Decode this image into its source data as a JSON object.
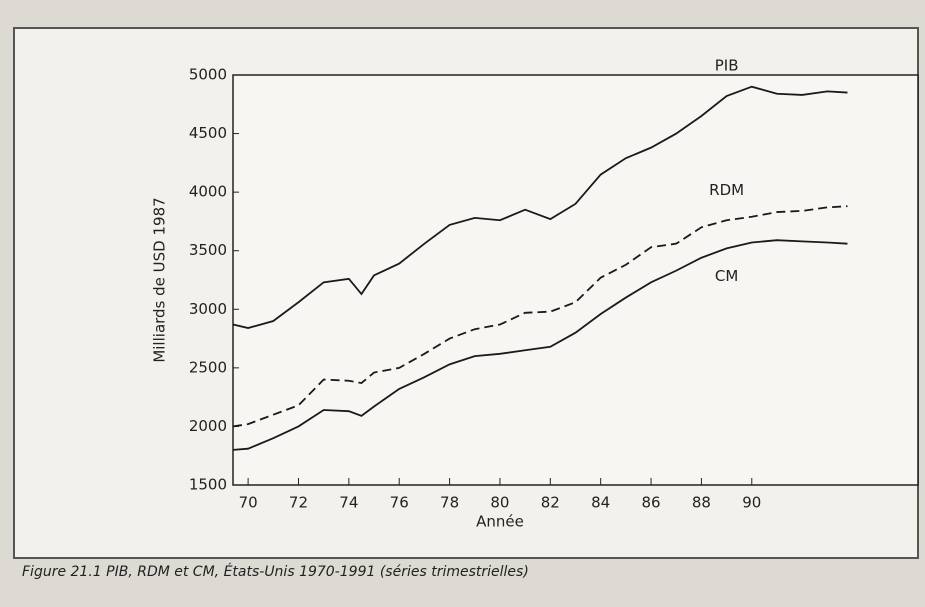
{
  "chart_data": {
    "type": "line",
    "ylabel": "Milliards de USD 1987",
    "xlabel": "Année",
    "caption": "Figure 21.1   PIB, RDM et CM, États-Unis 1970-1991 (séries trimestrielles)",
    "x": [
      69.4,
      70,
      71,
      72,
      73,
      74,
      74.5,
      75,
      76,
      77,
      78,
      79,
      80,
      81,
      82,
      83,
      84,
      85,
      86,
      87,
      88,
      89,
      90,
      91,
      92,
      93,
      93.8
    ],
    "series": [
      {
        "name": "PIB",
        "color": "#1a1a1a",
        "style": "solid",
        "values": [
          2870,
          2840,
          2900,
          3060,
          3230,
          3260,
          3130,
          3290,
          3390,
          3560,
          3720,
          3780,
          3760,
          3850,
          3770,
          3900,
          4150,
          4290,
          4380,
          4500,
          4650,
          4820,
          4900,
          4840,
          4830,
          4860,
          4850
        ]
      },
      {
        "name": "RDM",
        "color": "#1a1a1a",
        "style": "dashed",
        "values": [
          2000,
          2020,
          2100,
          2180,
          2400,
          2390,
          2370,
          2460,
          2500,
          2620,
          2750,
          2830,
          2870,
          2970,
          2980,
          3060,
          3270,
          3380,
          3530,
          3560,
          3700,
          3760,
          3790,
          3830,
          3840,
          3870,
          3880
        ]
      },
      {
        "name": "CM",
        "color": "#1a1a1a",
        "style": "solid",
        "values": [
          1800,
          1810,
          1900,
          2000,
          2140,
          2130,
          2090,
          2170,
          2320,
          2420,
          2530,
          2600,
          2620,
          2650,
          2680,
          2800,
          2960,
          3100,
          3230,
          3330,
          3440,
          3520,
          3570,
          3590,
          3580,
          3570,
          3560
        ]
      }
    ],
    "xlim": [
      69.4,
      96.6
    ],
    "xticks": [
      {
        "value": 70,
        "label": "70"
      },
      {
        "value": 72,
        "label": "72"
      },
      {
        "value": 74,
        "label": "74"
      },
      {
        "value": 76,
        "label": "76"
      },
      {
        "value": 78,
        "label": "78"
      },
      {
        "value": 80,
        "label": "80"
      },
      {
        "value": 82,
        "label": "82"
      },
      {
        "value": 84,
        "label": "84"
      },
      {
        "value": 86,
        "label": "86"
      },
      {
        "value": 88,
        "label": "88"
      },
      {
        "value": 90,
        "label": "90"
      }
    ],
    "ylim": [
      1500,
      5000
    ],
    "yticks": [
      1500,
      2000,
      2500,
      3000,
      3500,
      4000,
      4500,
      5000
    ],
    "grid": false
  }
}
